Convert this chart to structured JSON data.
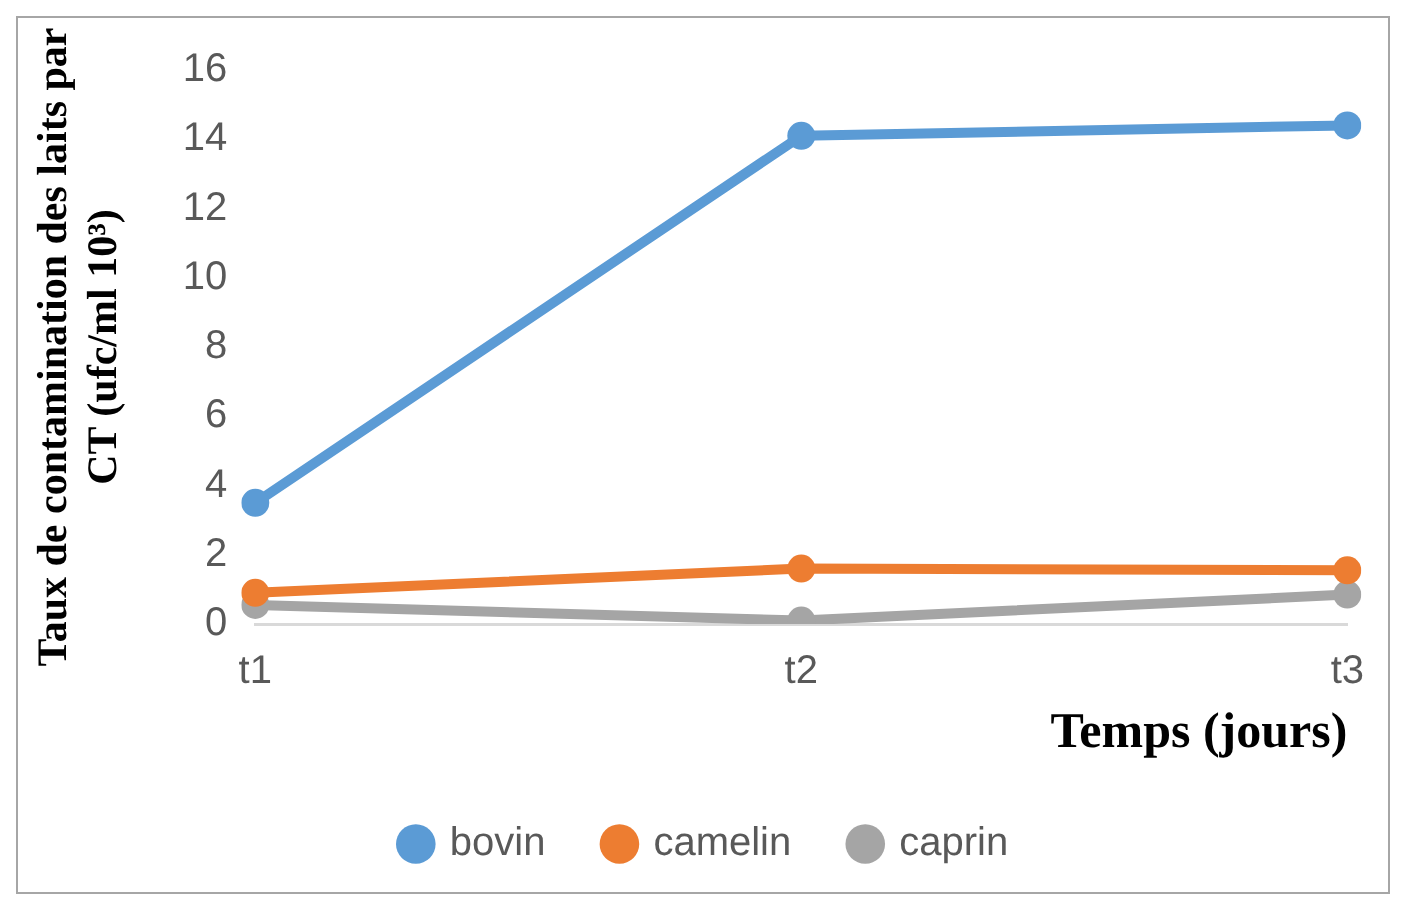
{
  "chart_data": {
    "type": "line",
    "xlabel": "Temps (jours)",
    "ylabel": "Taux de contamination des laits par CT (ufc/ml 10³)",
    "categories": [
      "t1",
      "t2",
      "t3"
    ],
    "series": [
      {
        "name": "bovin",
        "color": "#5b9bd5",
        "values": [
          3.5,
          14.1,
          14.4
        ]
      },
      {
        "name": "camelin",
        "color": "#ed7d31",
        "values": [
          0.9,
          1.6,
          1.55
        ]
      },
      {
        "name": "caprin",
        "color": "#a5a5a5",
        "values": [
          0.55,
          0.1,
          0.85
        ]
      }
    ],
    "ylim": [
      0,
      16
    ],
    "yticks": [
      0,
      2,
      4,
      6,
      8,
      10,
      12,
      14,
      16
    ],
    "grid": false,
    "legend": "bottom",
    "marker": "circle",
    "line_style": "solid"
  }
}
